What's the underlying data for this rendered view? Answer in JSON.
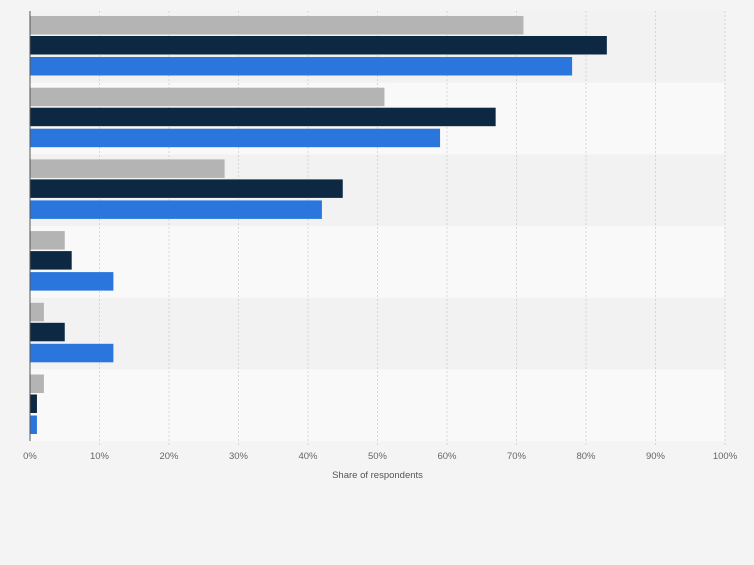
{
  "chart_data": {
    "type": "bar",
    "orientation": "horizontal",
    "categories": [
      "",
      "",
      "",
      "",
      "",
      ""
    ],
    "series": [
      {
        "values": [
          71,
          51,
          28,
          5,
          2,
          2
        ],
        "color": "#b4b4b4"
      },
      {
        "values": [
          83,
          67,
          45,
          6,
          5,
          1
        ],
        "color": "#0d2843"
      },
      {
        "values": [
          78,
          59,
          42,
          12,
          12,
          1
        ],
        "color": "#2a76dd"
      }
    ],
    "xlim": [
      0,
      100
    ],
    "xticks": [
      "0%",
      "10%",
      "20%",
      "30%",
      "40%",
      "50%",
      "60%",
      "70%",
      "80%",
      "90%",
      "100%"
    ],
    "xlabel": "Share of respondents",
    "grid": true,
    "legend": "none"
  }
}
